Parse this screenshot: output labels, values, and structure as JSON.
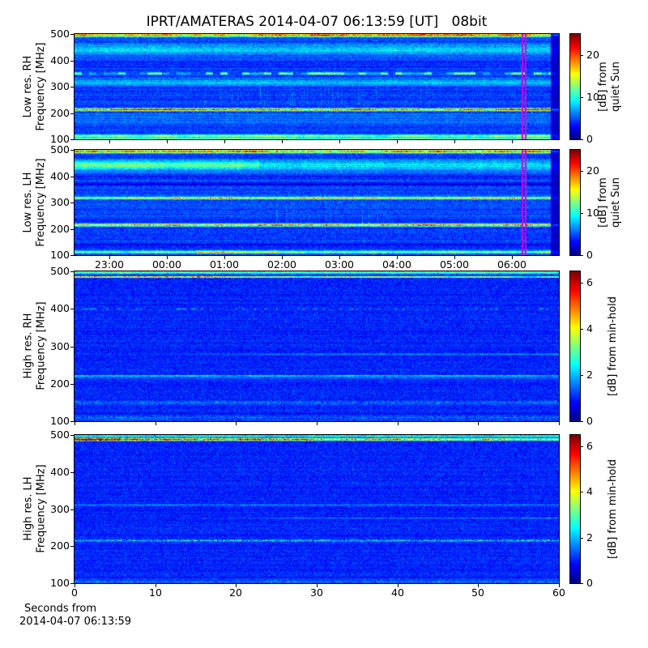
{
  "title": "IPRT/AMATERAS 2014-04-07 06:13:59 [UT]   08bit",
  "colors": {
    "background": "#ffffff",
    "text": "#000000",
    "frame": "#000000",
    "cursor_magenta": "#dd00dd",
    "colormap": "jet"
  },
  "cursor": {
    "time": "06:13:59",
    "fraction": 0.928
  },
  "time_axis": {
    "ticks": [
      {
        "label": "23:00",
        "f": 0.072
      },
      {
        "label": "00:00",
        "f": 0.191
      },
      {
        "label": "01:00",
        "f": 0.31
      },
      {
        "label": "02:00",
        "f": 0.428
      },
      {
        "label": "03:00",
        "f": 0.547
      },
      {
        "label": "04:00",
        "f": 0.666
      },
      {
        "label": "05:00",
        "f": 0.785
      },
      {
        "label": "06:00",
        "f": 0.903
      }
    ]
  },
  "seconds_axis": {
    "min": 0,
    "max": 60,
    "ticks": [
      0,
      10,
      20,
      30,
      40,
      50,
      60
    ],
    "label_line1": "Seconds from",
    "label_line2": "2014-04-07 06:13:59"
  },
  "freq_axis": {
    "min": 100,
    "max": 500,
    "ticks": [
      500,
      400,
      300,
      200,
      100
    ]
  },
  "chart_data": [
    {
      "id": "low-res-rh",
      "type": "heatmap",
      "ylabel_line1": "Low res. RH",
      "ylabel_line2": "Frequency [MHz]",
      "ylim": [
        100,
        500
      ],
      "colorbar": {
        "label_line1": "[dB] from",
        "label_line2": "quiet Sun",
        "ticks": [
          0,
          10,
          20
        ],
        "vmin": 0,
        "vmax": 25
      },
      "background_level_db": 4.6,
      "noise_db": 1.4,
      "row_stripe_db": 1.8,
      "dark_speckle": false,
      "bands": [
        {
          "freq_mhz": 496,
          "halfwidth_mhz": 6,
          "amp_db": 15,
          "type": "band"
        },
        {
          "freq_mhz": 441,
          "halfwidth_mhz": 20,
          "amp_db": 4.0,
          "type": "diffuse"
        },
        {
          "freq_mhz": 350,
          "halfwidth_mhz": 3.5,
          "amp_db": 11,
          "type": "dashed"
        },
        {
          "freq_mhz": 316,
          "halfwidth_mhz": 13,
          "amp_db": 3.0,
          "type": "diffuse"
        },
        {
          "freq_mhz": 253,
          "halfwidth_mhz": 1.5,
          "amp_db": -2.6,
          "type": "dark"
        },
        {
          "freq_mhz": 213,
          "halfwidth_mhz": 4.5,
          "amp_db": 15,
          "type": "band"
        },
        {
          "freq_mhz": 180,
          "halfwidth_mhz": 25,
          "amp_db": 1.2,
          "type": "diffuse"
        },
        {
          "freq_mhz": 113,
          "halfwidth_mhz": 5,
          "amp_db": 9.5,
          "type": "band"
        },
        {
          "freq_mhz": 102,
          "halfwidth_mhz": 4,
          "amp_db": 6,
          "type": "band"
        }
      ],
      "vertical_streaks": {
        "fmin": 228,
        "fmax": 298,
        "x0": 0.27,
        "x1": 0.75,
        "amp_db": 5,
        "density": 0.12
      },
      "no_data_column_from_fraction": 0.983,
      "cursor_line": true,
      "seed": 101
    },
    {
      "id": "low-res-lh",
      "type": "heatmap",
      "ylabel_line1": "Low res. LH",
      "ylabel_line2": "Frequency [MHz]",
      "ylim": [
        100,
        500
      ],
      "colorbar": {
        "label_line1": "[dB] from",
        "label_line2": "quiet Sun",
        "ticks": [
          0,
          10,
          20
        ],
        "vmin": 0,
        "vmax": 25
      },
      "background_level_db": 4.6,
      "noise_db": 1.4,
      "row_stripe_db": 1.8,
      "dark_speckle": false,
      "bands": [
        {
          "freq_mhz": 494,
          "halfwidth_mhz": 6,
          "amp_db": 14.5,
          "type": "band"
        },
        {
          "freq_mhz": 441,
          "halfwidth_mhz": 20,
          "amp_db": 4.5,
          "type": "diffuse"
        },
        {
          "freq_mhz": 443,
          "halfwidth_mhz": 14,
          "amp_db": 3.0,
          "type": "diffuse",
          "x0": 0.0,
          "x1": 0.38
        },
        {
          "freq_mhz": 399,
          "halfwidth_mhz": 2,
          "amp_db": -2.6,
          "type": "dark"
        },
        {
          "freq_mhz": 371,
          "halfwidth_mhz": 6,
          "amp_db": -2.0,
          "type": "dark"
        },
        {
          "freq_mhz": 317,
          "halfwidth_mhz": 4,
          "amp_db": 12,
          "type": "band"
        },
        {
          "freq_mhz": 214,
          "halfwidth_mhz": 4.5,
          "amp_db": 14,
          "type": "band"
        },
        {
          "freq_mhz": 140,
          "halfwidth_mhz": 2,
          "amp_db": -2.4,
          "type": "dark"
        },
        {
          "freq_mhz": 112,
          "halfwidth_mhz": 5,
          "amp_db": 7.5,
          "type": "band"
        },
        {
          "freq_mhz": 112,
          "halfwidth_mhz": 4,
          "amp_db": 5,
          "type": "band",
          "x0": 0.25,
          "x1": 0.42
        }
      ],
      "vertical_streaks": {
        "fmin": 215,
        "fmax": 300,
        "x0": 0.3,
        "x1": 0.68,
        "amp_db": 4.5,
        "density": 0.11
      },
      "no_data_column_from_fraction": 0.983,
      "cursor_line": true,
      "seed": 202
    },
    {
      "id": "high-res-rh",
      "type": "heatmap",
      "ylabel_line1": "High res. RH",
      "ylabel_line2": "Frequency [MHz]",
      "ylim": [
        100,
        500
      ],
      "colorbar": {
        "label_line1": "[dB] from min-hold",
        "label_line2": "",
        "ticks": [
          0,
          2,
          4,
          6
        ],
        "vmin": 0,
        "vmax": 6.5
      },
      "background_level_db": 1.05,
      "noise_db": 0.32,
      "row_stripe_db": 0.22,
      "dark_speckle": true,
      "bands": [
        {
          "freq_mhz": 497,
          "halfwidth_mhz": 4,
          "amp_db": 1.8,
          "type": "diffuse"
        },
        {
          "freq_mhz": 485,
          "halfwidth_mhz": 1.8,
          "amp_db": 4.2,
          "type": "band",
          "spikes": true,
          "decay_to": 0.55
        },
        {
          "freq_mhz": 400,
          "halfwidth_mhz": 1.2,
          "amp_db": 1.1,
          "type": "dotted"
        },
        {
          "freq_mhz": 279,
          "halfwidth_mhz": 1.3,
          "amp_db": 1.0,
          "type": "line",
          "fade_in": true
        },
        {
          "freq_mhz": 221,
          "halfwidth_mhz": 1.8,
          "amp_db": 1.5,
          "type": "line"
        },
        {
          "freq_mhz": 215,
          "halfwidth_mhz": 1.2,
          "amp_db": 0.8,
          "type": "line"
        },
        {
          "freq_mhz": 150,
          "halfwidth_mhz": 5,
          "amp_db": 0.5,
          "type": "speckle"
        },
        {
          "freq_mhz": 121,
          "halfwidth_mhz": 1,
          "amp_db": -0.7,
          "type": "dark"
        },
        {
          "freq_mhz": 108,
          "halfwidth_mhz": 7,
          "amp_db": 0.5,
          "type": "speckle"
        }
      ],
      "vertical_streaks": null,
      "no_data_column_from_fraction": null,
      "cursor_line": false,
      "seed": 303
    },
    {
      "id": "high-res-lh",
      "type": "heatmap",
      "ylabel_line1": "High res. LH",
      "ylabel_line2": "Frequency [MHz]",
      "ylim": [
        100,
        500
      ],
      "colorbar": {
        "label_line1": "[dB] from min-hold",
        "label_line2": "",
        "ticks": [
          0,
          2,
          4,
          6
        ],
        "vmin": 0,
        "vmax": 6.5
      },
      "background_level_db": 1.05,
      "noise_db": 0.32,
      "row_stripe_db": 0.22,
      "dark_speckle": true,
      "bands": [
        {
          "freq_mhz": 497,
          "halfwidth_mhz": 3,
          "amp_db": 1.6,
          "type": "diffuse"
        },
        {
          "freq_mhz": 488,
          "halfwidth_mhz": 3.2,
          "amp_db": 5.6,
          "type": "band",
          "spikes": true,
          "decay_to": 0.42
        },
        {
          "freq_mhz": 311,
          "halfwidth_mhz": 1.2,
          "amp_db": 0.8,
          "type": "line"
        },
        {
          "freq_mhz": 276,
          "halfwidth_mhz": 1.2,
          "amp_db": 0.9,
          "type": "line",
          "fade_in": true
        },
        {
          "freq_mhz": 215,
          "halfwidth_mhz": 2.5,
          "amp_db": 1.4,
          "type": "speckle"
        },
        {
          "freq_mhz": 117,
          "halfwidth_mhz": 0.9,
          "amp_db": -0.6,
          "type": "dark"
        },
        {
          "freq_mhz": 105,
          "halfwidth_mhz": 6,
          "amp_db": 0.55,
          "type": "speckle"
        }
      ],
      "vertical_streaks": null,
      "no_data_column_from_fraction": null,
      "cursor_line": false,
      "seed": 404
    }
  ]
}
